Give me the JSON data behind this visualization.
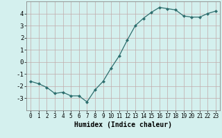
{
  "x": [
    0,
    1,
    2,
    3,
    4,
    5,
    6,
    7,
    8,
    9,
    10,
    11,
    12,
    13,
    14,
    15,
    16,
    17,
    18,
    19,
    20,
    21,
    22,
    23
  ],
  "y": [
    -1.6,
    -1.8,
    -2.1,
    -2.6,
    -2.5,
    -2.8,
    -2.8,
    -3.3,
    -2.3,
    -1.6,
    -0.5,
    0.5,
    1.8,
    3.0,
    3.6,
    4.1,
    4.5,
    4.4,
    4.3,
    3.8,
    3.7,
    3.7,
    4.0,
    4.2
  ],
  "line_color": "#2d6e6e",
  "marker": "D",
  "markersize": 2.0,
  "linewidth": 0.9,
  "bg_color": "#d4f0ee",
  "grid_color": "#c0aaaa",
  "xlabel": "Humidex (Indice chaleur)",
  "xlim": [
    -0.5,
    23.5
  ],
  "ylim": [
    -4.0,
    5.0
  ],
  "yticks": [
    -3,
    -2,
    -1,
    0,
    1,
    2,
    3,
    4
  ],
  "xticks": [
    0,
    1,
    2,
    3,
    4,
    5,
    6,
    7,
    8,
    9,
    10,
    11,
    12,
    13,
    14,
    15,
    16,
    17,
    18,
    19,
    20,
    21,
    22,
    23
  ],
  "tick_fontsize": 5.5,
  "xlabel_fontsize": 7.0,
  "ytick_fontsize": 6.5
}
